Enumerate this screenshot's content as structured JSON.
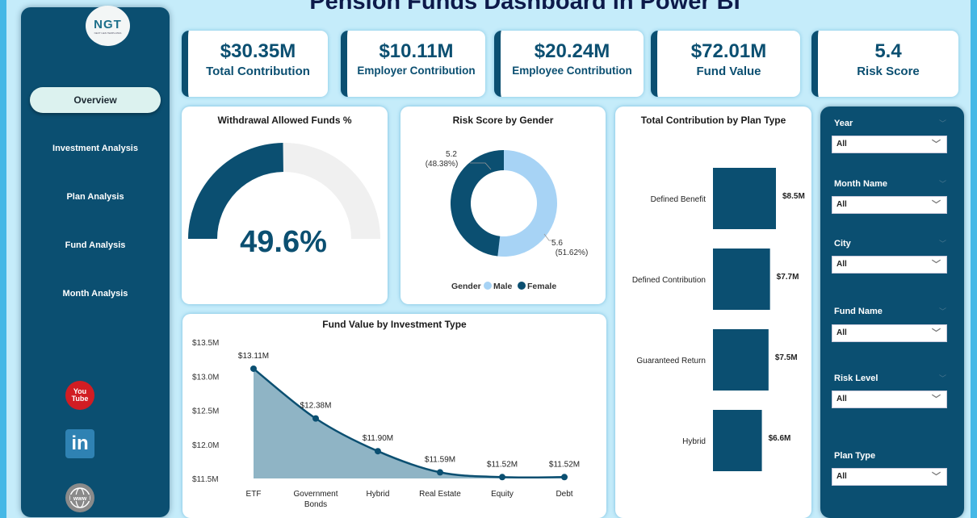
{
  "header": {
    "title": "Pension Funds Dashboard in Power BI"
  },
  "logo": {
    "brand": "NGT",
    "tagline": "NEXT GEN TEMPLATES"
  },
  "nav": {
    "items": [
      {
        "label": "Overview",
        "active": true
      },
      {
        "label": "Investment Analysis",
        "active": false
      },
      {
        "label": "Plan Analysis",
        "active": false
      },
      {
        "label": "Fund Analysis",
        "active": false
      },
      {
        "label": "Month Analysis",
        "active": false
      }
    ],
    "social": [
      {
        "icon": "youtube-icon",
        "text1": "You",
        "text2": "Tube"
      },
      {
        "icon": "linkedin-icon",
        "text1": "in"
      },
      {
        "icon": "globe-icon",
        "text1": "www"
      }
    ]
  },
  "kpis": [
    {
      "value": "$30.35M",
      "label": "Total Contribution"
    },
    {
      "value": "$10.11M",
      "label": "Employer Contribution"
    },
    {
      "value": "$20.24M",
      "label": "Employee Contribution"
    },
    {
      "value": "$72.01M",
      "label": "Fund Value"
    },
    {
      "value": "5.4",
      "label": "Risk Score"
    }
  ],
  "colors": {
    "primary": "#0b4f71",
    "light": "#a7d3f5",
    "gauge_bg": "#f0f0f0",
    "area_fill": "#8fb4c5"
  },
  "filters": [
    {
      "label": "Year",
      "value": "All"
    },
    {
      "label": "Month Name",
      "value": "All"
    },
    {
      "label": "City",
      "value": "All"
    },
    {
      "label": "Fund Name",
      "value": "All"
    },
    {
      "label": "Risk Level",
      "value": "All"
    },
    {
      "label": "Plan Type",
      "value": "All"
    }
  ],
  "chart_data": [
    {
      "type": "gauge",
      "title": "Withdrawal Allowed Funds %",
      "value": 49.6,
      "max": 100,
      "display": "49.6%"
    },
    {
      "type": "pie",
      "title": "Risk Score by Gender",
      "legend_title": "Gender",
      "legend_position": "bottom",
      "slices": [
        {
          "name": "Male",
          "value": 5.6,
          "percent": "51.62%",
          "label": "5.6",
          "label_pct": "(51.62%)"
        },
        {
          "name": "Female",
          "value": 5.2,
          "percent": "48.38%",
          "label": "5.2",
          "label_pct": "(48.38%)"
        }
      ]
    },
    {
      "type": "bar",
      "orientation": "horizontal",
      "title": "Total Contribution by Plan Type",
      "categories": [
        "Defined Benefit",
        "Defined Contribution",
        "Guaranteed Return",
        "Hybrid"
      ],
      "values": [
        8.5,
        7.7,
        7.5,
        6.6
      ],
      "labels": [
        "$8.5M",
        "$7.7M",
        "$7.5M",
        "$6.6M"
      ],
      "unit": "$M"
    },
    {
      "type": "area",
      "title": "Fund Value by Investment Type",
      "categories": [
        "ETF",
        "Government Bonds",
        "Hybrid",
        "Real Estate",
        "Equity",
        "Debt"
      ],
      "values": [
        13.11,
        12.38,
        11.9,
        11.59,
        11.52,
        11.52
      ],
      "labels": [
        "$13.11M",
        "$12.38M",
        "$11.90M",
        "$11.59M",
        "$11.52M",
        "$11.52M"
      ],
      "ylim": [
        11.5,
        13.5
      ],
      "yticks": [
        "$13.5M",
        "$13.0M",
        "$12.5M",
        "$12.0M",
        "$11.5M"
      ],
      "ytick_values": [
        13.5,
        13.0,
        12.5,
        12.0,
        11.5
      ]
    }
  ]
}
